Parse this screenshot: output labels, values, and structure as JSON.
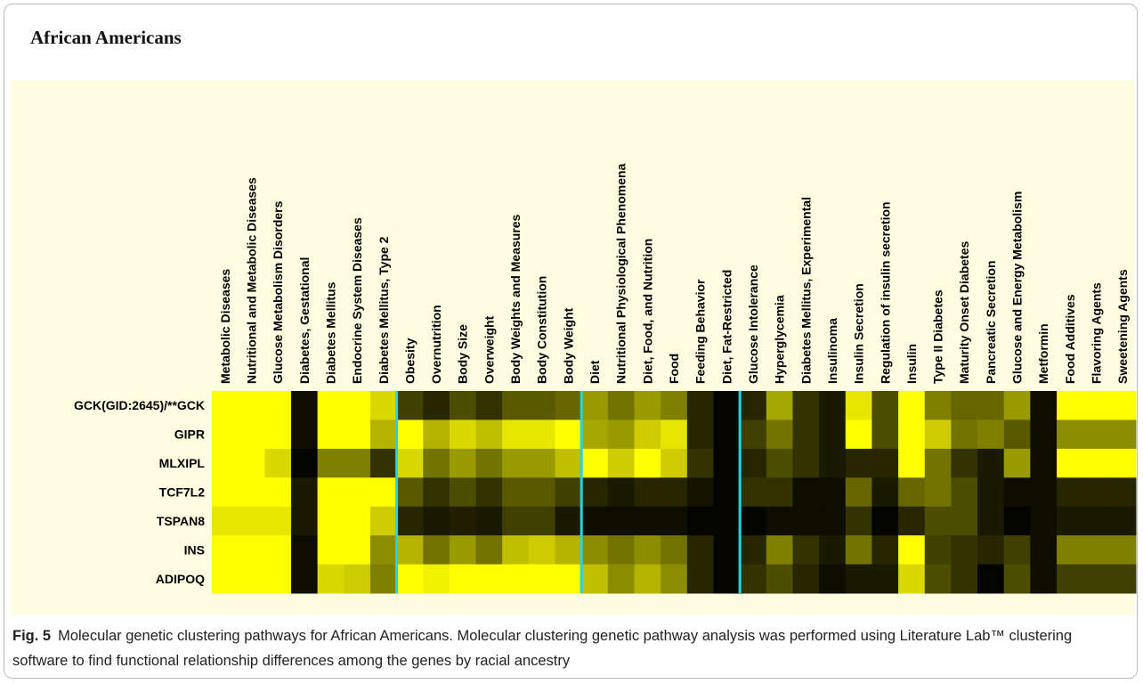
{
  "chart_data": {
    "type": "heatmap",
    "title": "African Americans",
    "columns": [
      "Metabolic Diseases",
      "Nutritional and Metabolic Diseases",
      "Glucose Metabolism Disorders",
      "Diabetes, Gestational",
      "Diabetes Mellitus",
      "Endocrine System Diseases",
      "Diabetes Mellitus, Type 2",
      "Obesity",
      "Overnutrition",
      "Body Size",
      "Overweight",
      "Body Weights and Measures",
      "Body Constitution",
      "Body Weight",
      "Diet",
      "Nutritional Physiological Phenomena",
      "Diet, Food, and Nutrition",
      "Food",
      "Feeding Behavior",
      "Diet, Fat-Restricted",
      "Glucose Intolerance",
      "Hyperglycemia",
      "Diabetes Mellitus, Experimental",
      "Insulinoma",
      "Insulin Secretion",
      "Regulation of insulin secretion",
      "Insulin",
      "Type II Diabetes",
      "Maturity Onset Diabetes",
      "Pancreatic Secretion",
      "Glucose and Energy Metabolism",
      "Metformin",
      "Food Additives",
      "Flavoring Agents",
      "Sweetening Agents"
    ],
    "rows": [
      "GCK(GID:2645)/**GCK",
      "GIPR",
      "MLXIPL",
      "TCF7L2",
      "TSPAN8",
      "INS",
      "ADIPOQ"
    ],
    "values": [
      [
        1,
        1,
        1,
        0.05,
        1,
        1,
        0.85,
        0.25,
        0.15,
        0.3,
        0.2,
        0.35,
        0.35,
        0.4,
        0.6,
        0.45,
        0.6,
        0.5,
        0.15,
        0.02,
        0.15,
        0.65,
        0.2,
        0.1,
        0.9,
        0.3,
        1,
        0.5,
        0.4,
        0.4,
        0.6,
        0.05,
        1,
        1,
        1
      ],
      [
        1,
        1,
        1,
        0.05,
        1,
        1,
        0.7,
        1,
        0.7,
        0.85,
        0.75,
        0.9,
        0.9,
        1,
        0.65,
        0.6,
        0.8,
        0.9,
        0.15,
        0.02,
        0.25,
        0.45,
        0.2,
        0.1,
        1,
        0.3,
        1,
        0.8,
        0.45,
        0.5,
        0.35,
        0.05,
        0.55,
        0.55,
        0.55
      ],
      [
        1,
        1,
        0.85,
        0.02,
        0.5,
        0.5,
        0.2,
        0.85,
        0.45,
        0.6,
        0.45,
        0.6,
        0.6,
        0.75,
        1,
        0.8,
        1,
        0.8,
        0.2,
        0.02,
        0.15,
        0.3,
        0.2,
        0.1,
        0.15,
        0.15,
        1,
        0.45,
        0.2,
        0.1,
        0.6,
        0.05,
        1,
        1,
        1
      ],
      [
        1,
        1,
        1,
        0.1,
        1,
        1,
        1,
        0.35,
        0.2,
        0.3,
        0.2,
        0.35,
        0.35,
        0.25,
        0.15,
        0.1,
        0.15,
        0.15,
        0.08,
        0.02,
        0.2,
        0.2,
        0.05,
        0.05,
        0.4,
        0.1,
        0.4,
        0.45,
        0.3,
        0.1,
        0.05,
        0.05,
        0.15,
        0.15,
        0.15
      ],
      [
        0.9,
        0.9,
        0.9,
        0.1,
        1,
        1,
        0.8,
        0.15,
        0.1,
        0.12,
        0.1,
        0.25,
        0.25,
        0.1,
        0.05,
        0.05,
        0.05,
        0.05,
        0.02,
        0.02,
        0.02,
        0.05,
        0.05,
        0.05,
        0.2,
        0.02,
        0.15,
        0.3,
        0.3,
        0.1,
        0.02,
        0.05,
        0.1,
        0.1,
        0.1
      ],
      [
        1,
        1,
        1,
        0.05,
        1,
        1,
        0.55,
        0.7,
        0.45,
        0.6,
        0.45,
        0.75,
        0.8,
        0.7,
        0.55,
        0.45,
        0.55,
        0.45,
        0.15,
        0.02,
        0.15,
        0.5,
        0.2,
        0.1,
        0.45,
        0.15,
        1,
        0.25,
        0.2,
        0.15,
        0.25,
        0.05,
        0.5,
        0.5,
        0.5
      ],
      [
        1,
        1,
        1,
        0.05,
        0.85,
        0.8,
        0.5,
        1,
        0.95,
        1,
        1,
        1,
        1,
        1,
        0.75,
        0.55,
        0.7,
        0.55,
        0.15,
        0.02,
        0.2,
        0.3,
        0.15,
        0.05,
        0.1,
        0.1,
        0.85,
        0.3,
        0.2,
        0.02,
        0.3,
        0.05,
        0.25,
        0.25,
        0.25
      ]
    ],
    "high_color": "#ffff00",
    "low_color": "#000000",
    "separator_color": "#19d9e6",
    "column_groups": [
      7,
      7,
      6,
      15
    ]
  },
  "caption": {
    "label": "Fig. 5",
    "text": "Molecular genetic clustering pathways for African Americans. Molecular clustering genetic pathway analysis was performed using Literature Lab™ clustering software to find functional relationship differences among the genes by racial ancestry"
  }
}
